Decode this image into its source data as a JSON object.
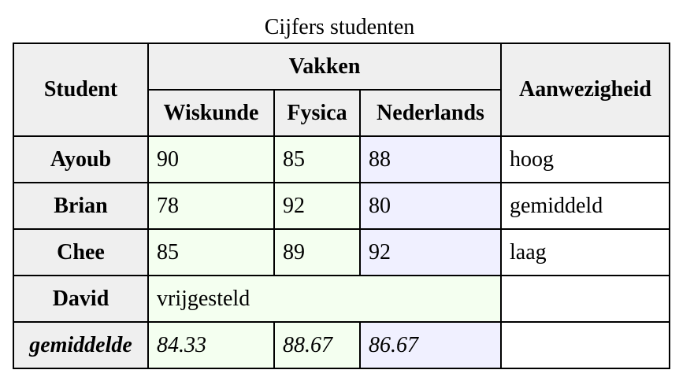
{
  "table": {
    "caption": "Cijfers studenten",
    "headers": {
      "student": "Student",
      "group": "Vakken",
      "subjects": [
        "Wiskunde",
        "Fysica",
        "Nederlands"
      ],
      "attendance": "Aanwezigheid"
    },
    "rows": [
      {
        "name": "Ayoub",
        "scores": [
          "90",
          "85",
          "88"
        ],
        "attendance": "hoog"
      },
      {
        "name": "Brian",
        "scores": [
          "78",
          "92",
          "80"
        ],
        "attendance": "gemiddeld"
      },
      {
        "name": "Chee",
        "scores": [
          "85",
          "89",
          "92"
        ],
        "attendance": "laag"
      }
    ],
    "exempt_row": {
      "name": "David",
      "note": "vrijgesteld",
      "attendance": ""
    },
    "average_row": {
      "label": "gemiddelde",
      "scores": [
        "84.33",
        "88.67",
        "86.67"
      ],
      "attendance": ""
    }
  },
  "colors": {
    "header_bg": "#efefef",
    "col_green": "#f4fff0",
    "col_lavender": "#f0f0ff",
    "border": "#000000"
  }
}
